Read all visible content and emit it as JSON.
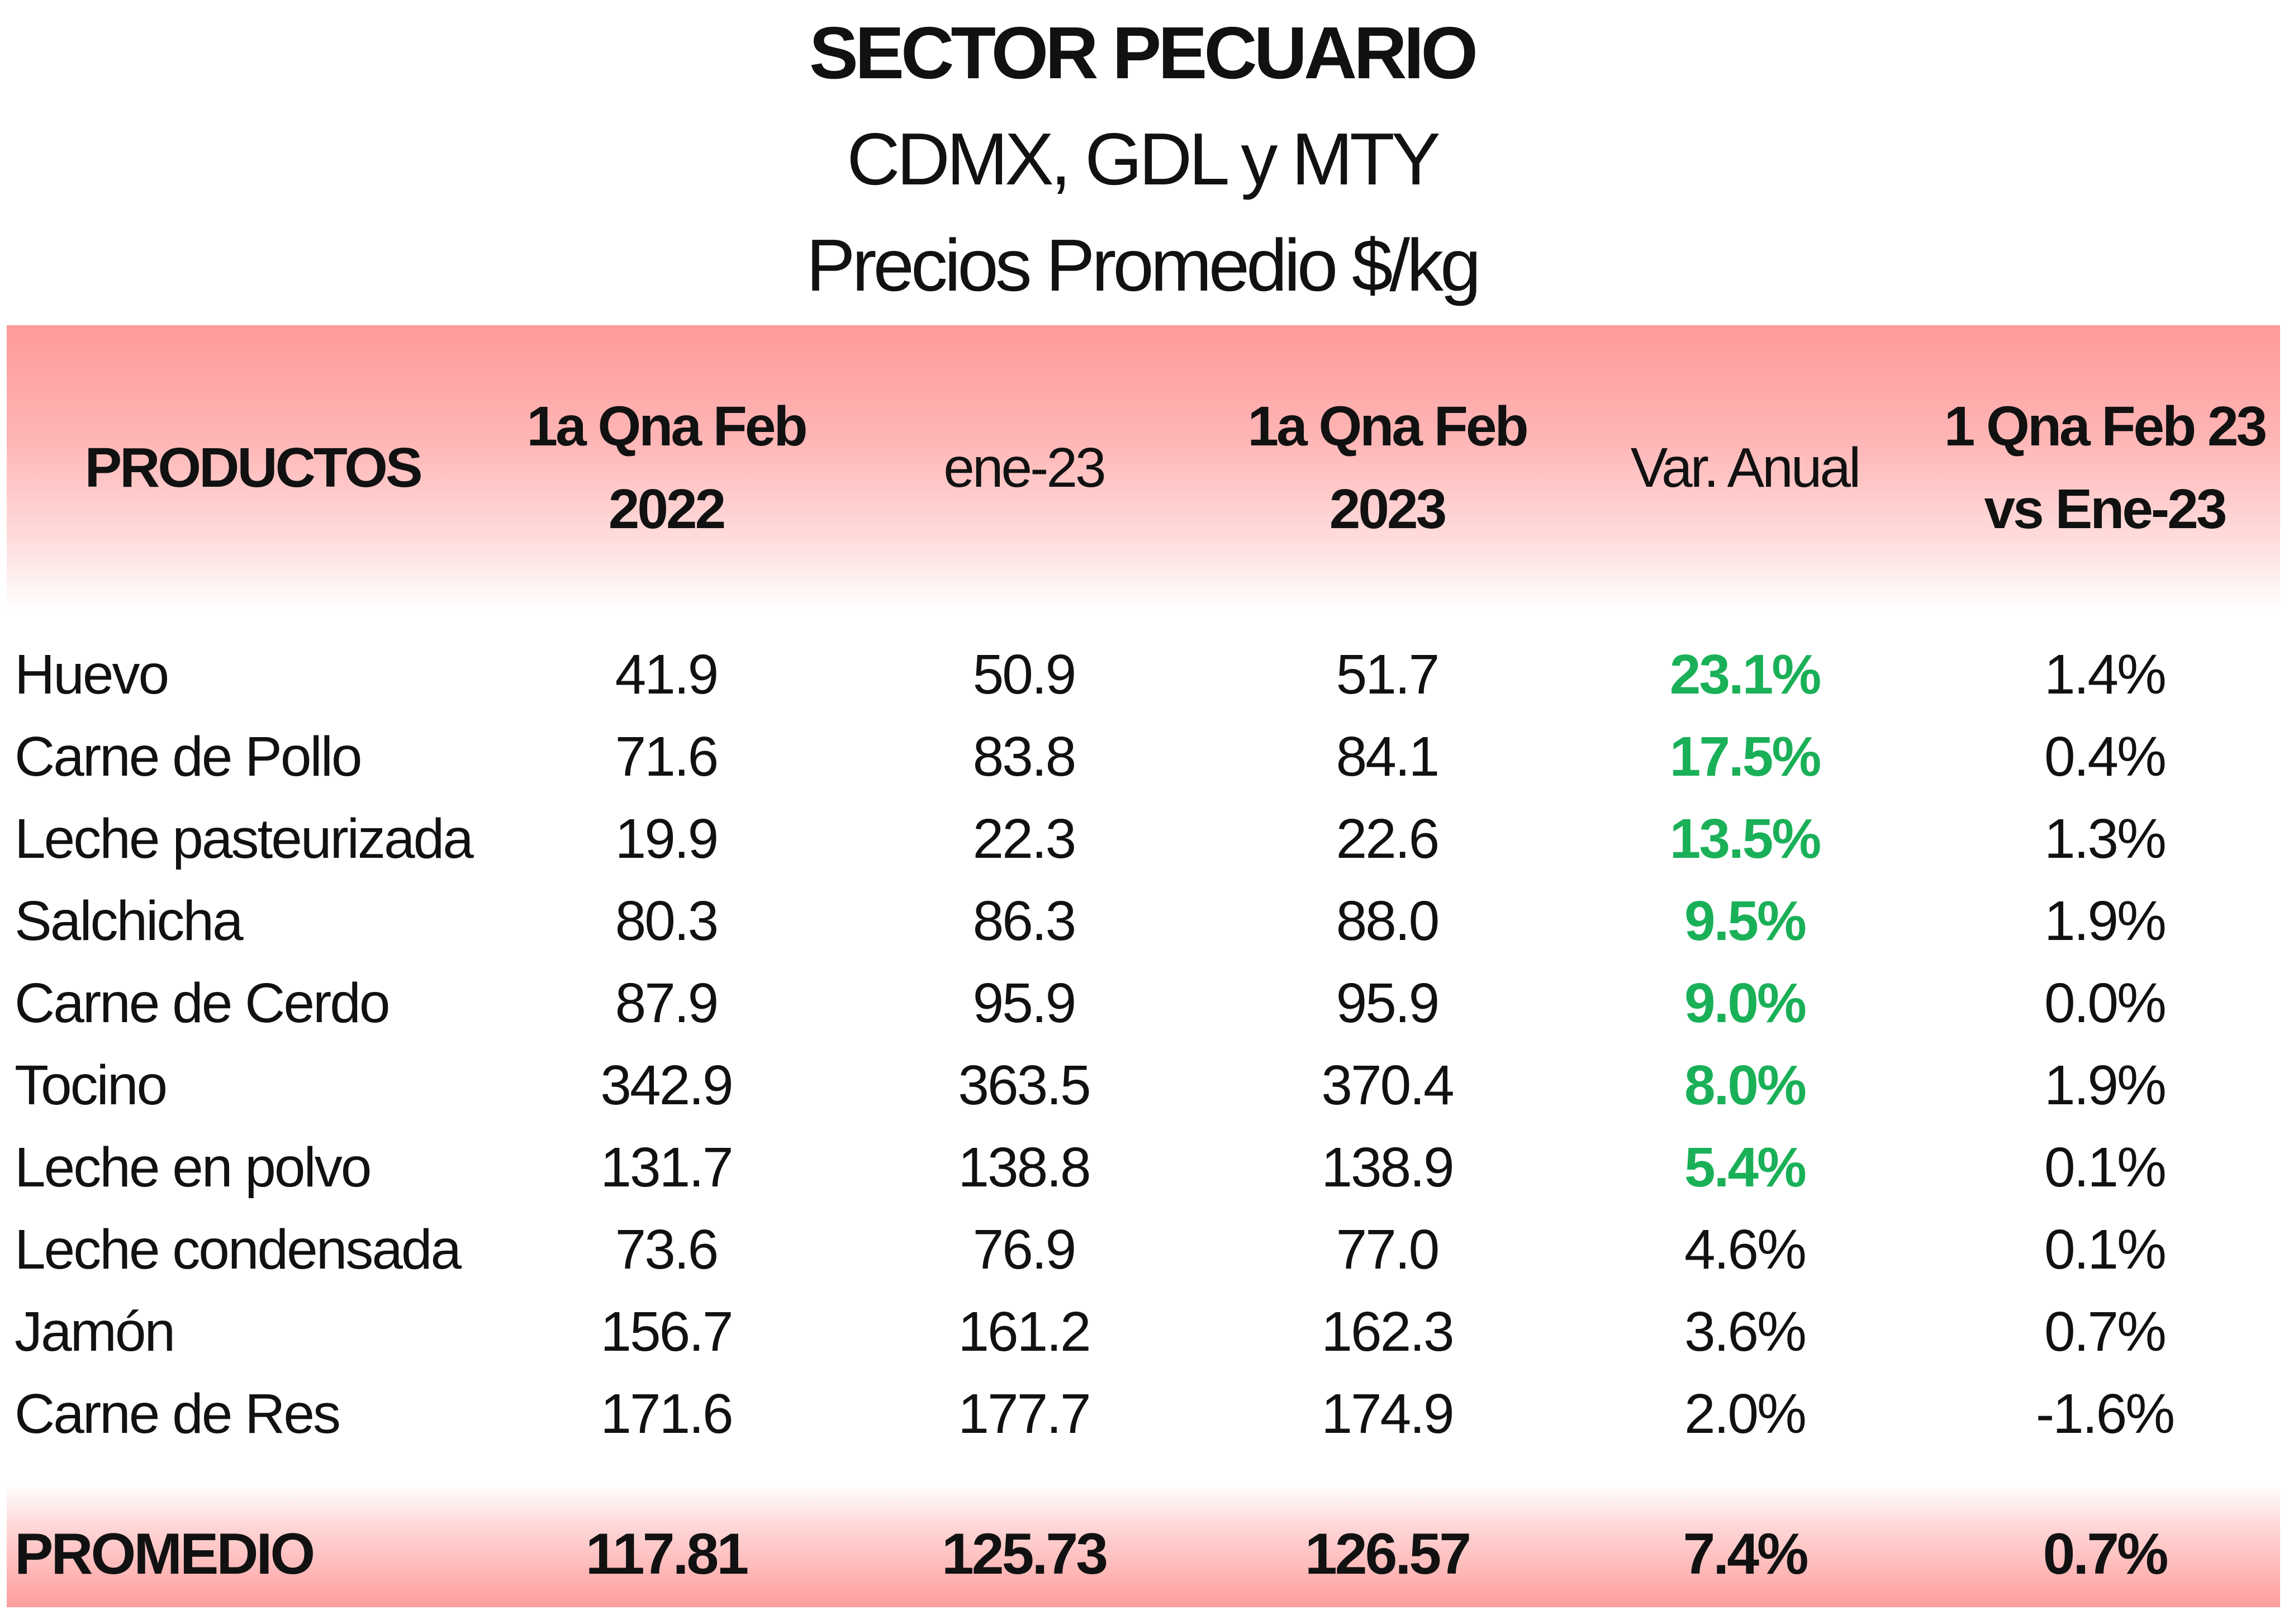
{
  "title": {
    "main": "SECTOR PECUARIO",
    "sub": "CDMX, GDL y MTY",
    "unit": "Precios Promedio $/kg"
  },
  "columns": {
    "products": "PRODUCTOS",
    "feb2022_line1": "1a Qna Feb",
    "feb2022_line2": "2022",
    "jan2023": "ene-23",
    "feb2023_line1": "1a Qna Feb",
    "feb2023_line2": "2023",
    "annual_var": "Var. Anual",
    "monthly_var_line1": "1 Qna Feb 23",
    "monthly_var_line2": "vs Ene-23"
  },
  "rows": [
    {
      "product": "Huevo",
      "feb2022": "41.9",
      "jan2023": "50.9",
      "feb2023": "51.7",
      "annual_var": "23.1%",
      "monthly_var": "1.4%",
      "highlight": true
    },
    {
      "product": "Carne de Pollo",
      "feb2022": "71.6",
      "jan2023": "83.8",
      "feb2023": "84.1",
      "annual_var": "17.5%",
      "monthly_var": "0.4%",
      "highlight": true
    },
    {
      "product": "Leche pasteurizada",
      "feb2022": "19.9",
      "jan2023": "22.3",
      "feb2023": "22.6",
      "annual_var": "13.5%",
      "monthly_var": "1.3%",
      "highlight": true
    },
    {
      "product": "Salchicha",
      "feb2022": "80.3",
      "jan2023": "86.3",
      "feb2023": "88.0",
      "annual_var": "9.5%",
      "monthly_var": "1.9%",
      "highlight": true
    },
    {
      "product": "Carne de Cerdo",
      "feb2022": "87.9",
      "jan2023": "95.9",
      "feb2023": "95.9",
      "annual_var": "9.0%",
      "monthly_var": "0.0%",
      "highlight": true
    },
    {
      "product": "Tocino",
      "feb2022": "342.9",
      "jan2023": "363.5",
      "feb2023": "370.4",
      "annual_var": "8.0%",
      "monthly_var": "1.9%",
      "highlight": true
    },
    {
      "product": "Leche en polvo",
      "feb2022": "131.7",
      "jan2023": "138.8",
      "feb2023": "138.9",
      "annual_var": "5.4%",
      "monthly_var": "0.1%",
      "highlight": true
    },
    {
      "product": "Leche condensada",
      "feb2022": "73.6",
      "jan2023": "76.9",
      "feb2023": "77.0",
      "annual_var": "4.6%",
      "monthly_var": "0.1%",
      "highlight": false
    },
    {
      "product": "Jamón",
      "feb2022": "156.7",
      "jan2023": "161.2",
      "feb2023": "162.3",
      "annual_var": "3.6%",
      "monthly_var": "0.7%",
      "highlight": false
    },
    {
      "product": "Carne de Res",
      "feb2022": "171.6",
      "jan2023": "177.7",
      "feb2023": "174.9",
      "annual_var": "2.0%",
      "monthly_var": "-1.6%",
      "highlight": false
    }
  ],
  "footer": {
    "label": "PROMEDIO",
    "feb2022": "117.81",
    "jan2023": "125.73",
    "feb2023": "126.57",
    "annual_var": "7.4%",
    "monthly_var": "0.7%"
  },
  "colors": {
    "highlight_green": "#1ab058",
    "header_red": "#ff9a9a"
  }
}
